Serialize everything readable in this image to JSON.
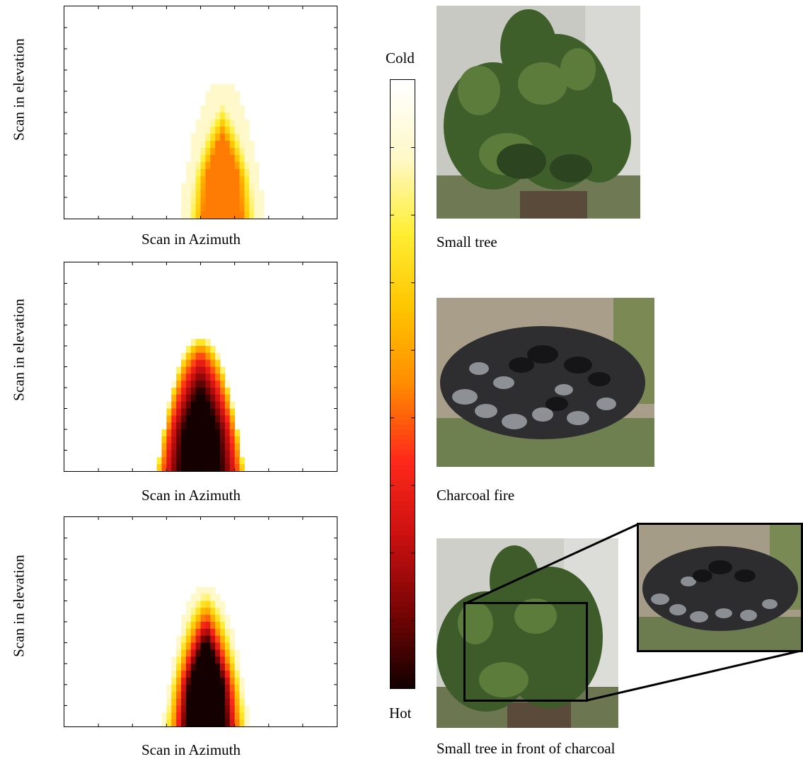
{
  "panels": [
    {
      "id": "small-tree",
      "xlabel": "Scan in Azimuth",
      "ylabel": "Scan in elevation",
      "caption": "Small tree",
      "heatmap": {
        "type": "heatmap",
        "colormap": "hot",
        "value_meaning": "fraction of colorbar from Cold (0) to Hot (1)",
        "azimuth_center": 0.58,
        "top_row": 0.35,
        "base_halfwidth": 0.12,
        "peak": 0.52,
        "falloff": 1.6
      }
    },
    {
      "id": "charcoal-fire",
      "xlabel": "Scan in Azimuth",
      "ylabel": "Scan in elevation",
      "caption": "Charcoal fire",
      "heatmap": {
        "type": "heatmap",
        "colormap": "hot",
        "value_meaning": "fraction of colorbar from Cold (0) to Hot (1)",
        "azimuth_center": 0.5,
        "top_row": 0.36,
        "base_halfwidth": 0.12,
        "peak": 1.0,
        "falloff": 0.45
      }
    },
    {
      "id": "tree-in-front-of-charcoal",
      "xlabel": "Scan in Azimuth",
      "ylabel": "Scan in elevation",
      "caption": "Small tree in front of charcoal",
      "heatmap": {
        "type": "heatmap",
        "colormap": "hot",
        "value_meaning": "fraction of colorbar from Cold (0) to Hot (1)",
        "azimuth_center": 0.52,
        "top_row": 0.32,
        "base_halfwidth": 0.12,
        "peak": 1.0,
        "falloff": 1.0
      }
    }
  ],
  "colorbar": {
    "top_label": "Cold",
    "bottom_label": "Hot",
    "stops": [
      "#ffffff",
      "#fff8c8",
      "#ffee33",
      "#ffc400",
      "#ff8c00",
      "#ff2a1a",
      "#cc1010",
      "#7a0505",
      "#150000"
    ]
  },
  "chart_data": [
    {
      "type": "heatmap",
      "xlabel": "Scan in Azimuth",
      "ylabel": "Scan in elevation"
    },
    {
      "type": "heatmap",
      "xlabel": "Scan in Azimuth",
      "ylabel": "Scan in elevation"
    },
    {
      "type": "heatmap",
      "xlabel": "Scan in Azimuth",
      "ylabel": "Scan in elevation"
    }
  ]
}
